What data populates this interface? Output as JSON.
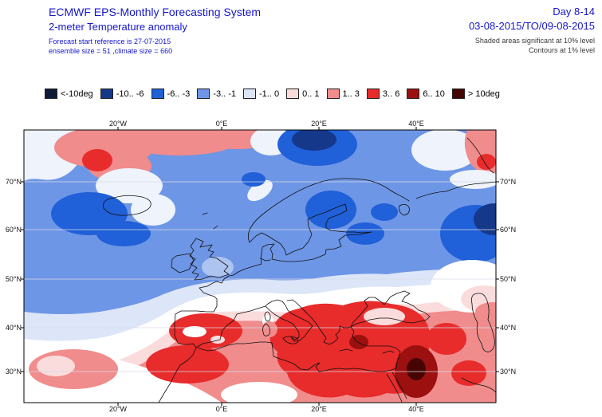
{
  "header": {
    "title": "ECMWF EPS-Monthly Forecasting System",
    "subtitle": "2-meter Temperature anomaly",
    "forecast_ref": "Forecast start reference is 27-07-2015",
    "ensemble_info": "ensemble size = 51 ,climate size = 660",
    "day_range": "Day 8-14",
    "valid_period": "03-08-2015/TO/09-08-2015",
    "significance_note": "Shaded areas significant at 10% level",
    "contour_note": "Contours at 1% level"
  },
  "legend": {
    "unit": "deg",
    "entries": [
      {
        "label": "<-10deg",
        "color": "#0d1b38"
      },
      {
        "label": "-10.. -6",
        "color": "#15388a"
      },
      {
        "label": "-6.. -3",
        "color": "#2060d8"
      },
      {
        "label": "-3.. -1",
        "color": "#6e96e6"
      },
      {
        "label": "-1.. 0",
        "color": "#dce6f8"
      },
      {
        "label": "0.. 1",
        "color": "#fbdcdc"
      },
      {
        "label": "1.. 3",
        "color": "#f08c8c"
      },
      {
        "label": "3.. 6",
        "color": "#e82b2b"
      },
      {
        "label": "6.. 10",
        "color": "#9c1010"
      },
      {
        "label": "> 10deg",
        "color": "#460503"
      }
    ]
  },
  "map": {
    "lon_labels": [
      "20°W",
      "0°E",
      "20°E",
      "40°E"
    ],
    "lat_labels": [
      "70°N",
      "60°N",
      "50°N",
      "40°N",
      "30°N"
    ]
  }
}
